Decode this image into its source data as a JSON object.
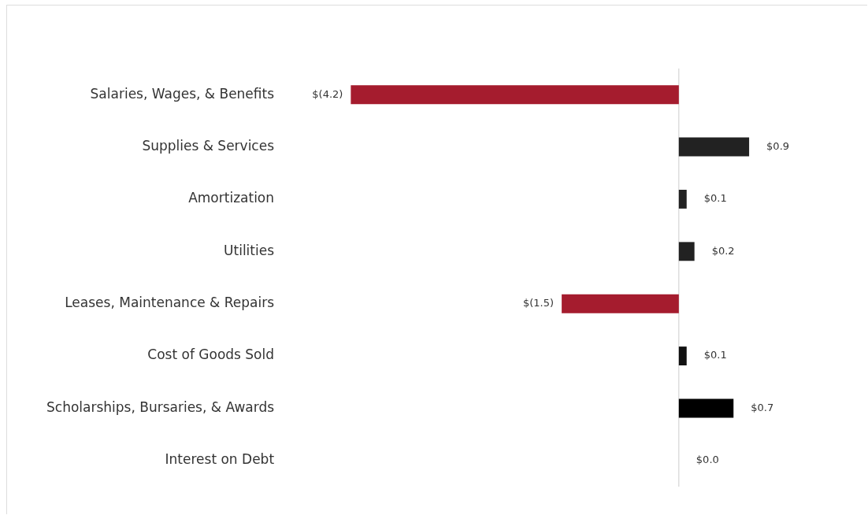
{
  "chart_data": {
    "type": "bar",
    "orientation": "horizontal",
    "categories": [
      "Salaries, Wages, & Benefits",
      "Supplies & Services",
      "Amortization",
      "Utilities",
      "Leases, Maintenance & Repairs",
      "Cost of Goods Sold",
      "Scholarships, Bursaries, & Awards",
      "Interest on Debt"
    ],
    "values": [
      -4.2,
      0.9,
      0.1,
      0.2,
      -1.5,
      0.1,
      0.7,
      0.0
    ],
    "colors": [
      "#a51c2e",
      "#222222",
      "#222222",
      "#222222",
      "#a51c2e",
      "#111111",
      "#000000",
      "#222222"
    ],
    "value_labels": [
      "$(4.2)",
      "$0.9",
      "$0.1",
      "$0.2",
      "$(1.5)",
      "$0.1",
      "$0.7",
      "$0.0"
    ],
    "tick_labels": "y",
    "grid": false,
    "legend": false
  }
}
